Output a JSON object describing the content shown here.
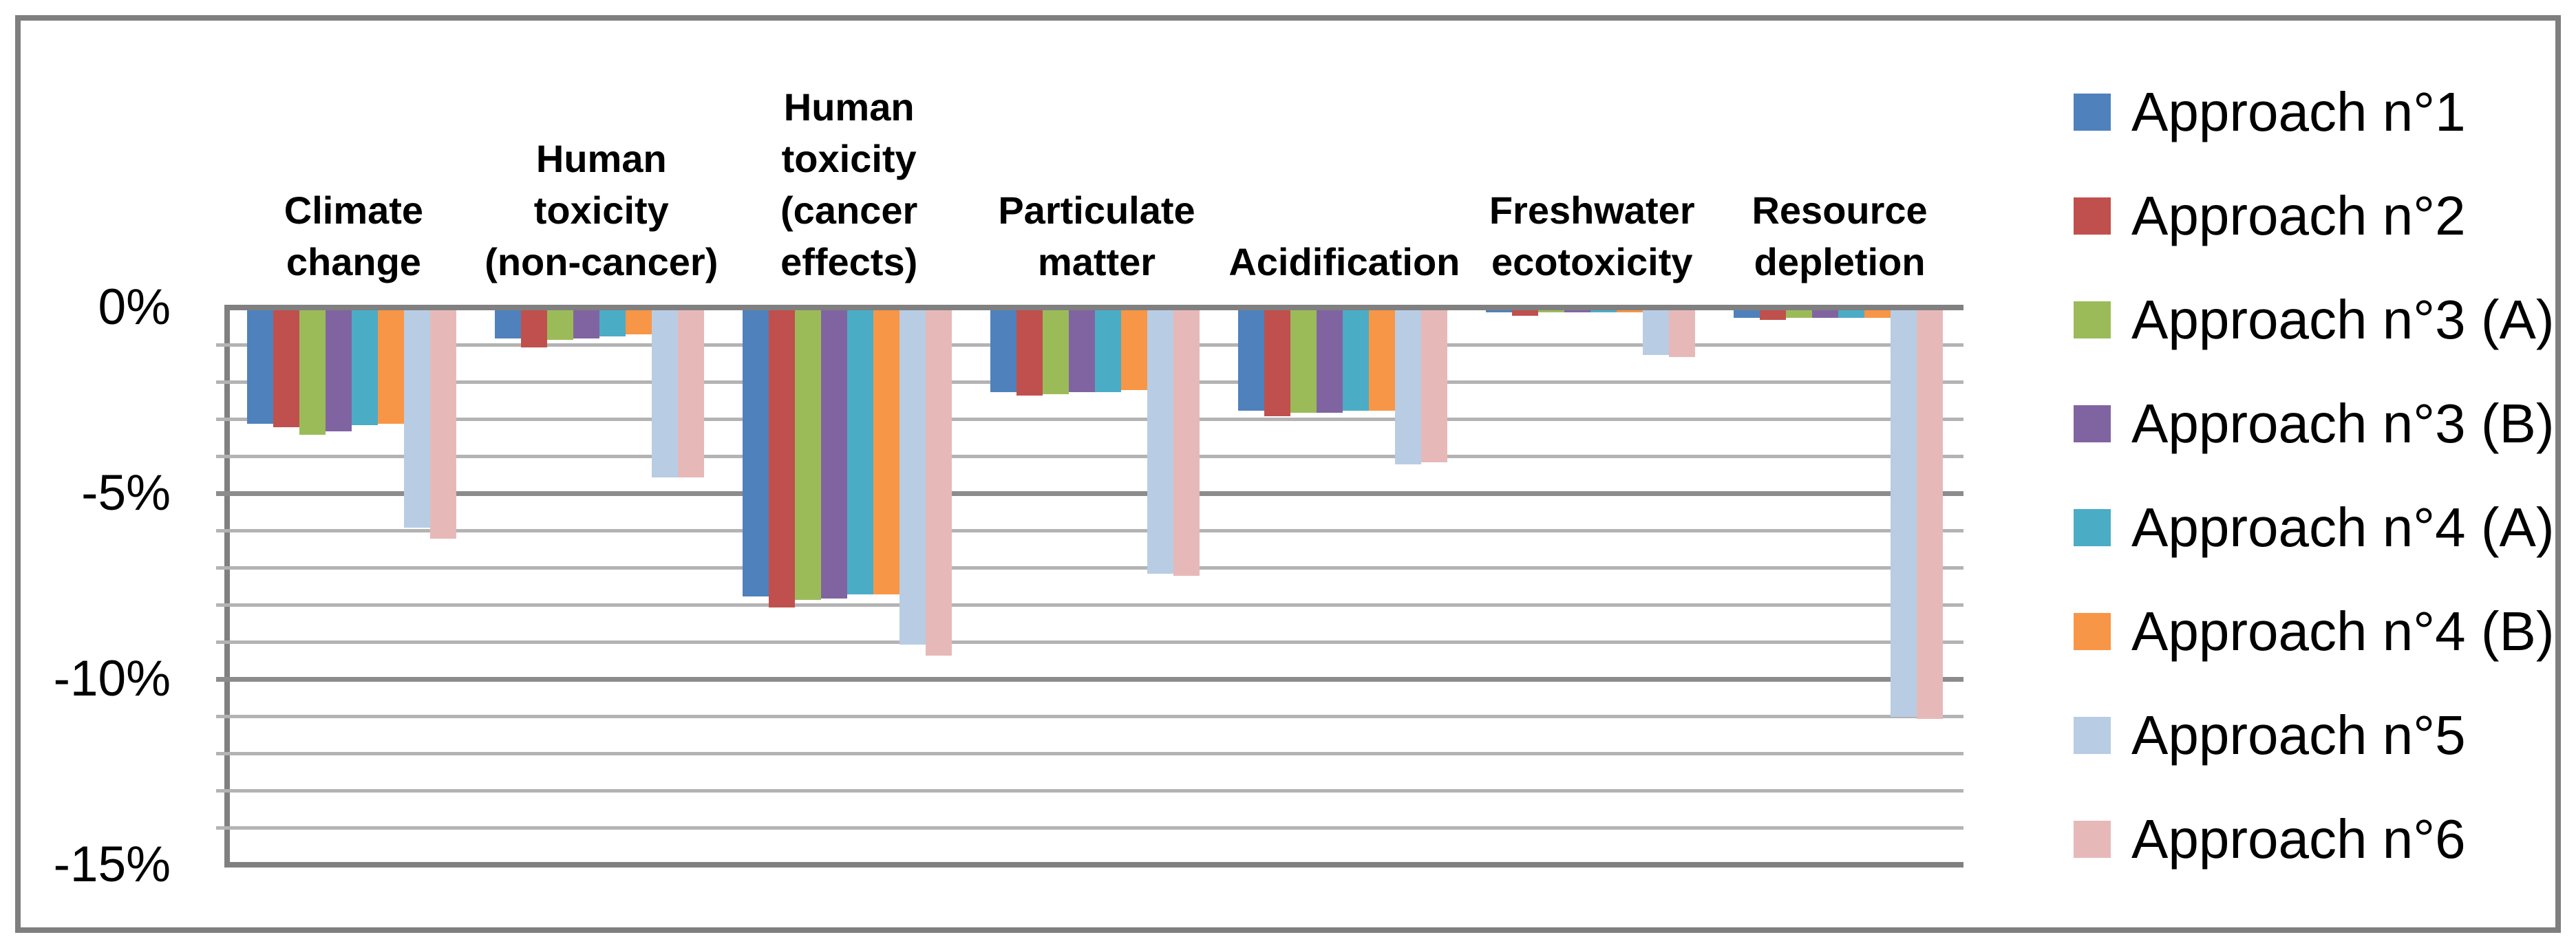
{
  "colors": {
    "frame_border": "#7F7F7F",
    "axis_line": "#808080",
    "grid_minor": "#B3B3B3",
    "grid_major": "#8C8C8C",
    "background": "#FFFFFF"
  },
  "chart_data": {
    "type": "bar",
    "title": "",
    "orientation": "vertical",
    "unit": "%",
    "categories": [
      {
        "label": "Climate change",
        "display": "Climate\nchange"
      },
      {
        "label": "Human toxicity (non-cancer)",
        "display": "Human\ntoxicity\n(non-cancer)"
      },
      {
        "label": "Human toxicity (cancer effects)",
        "display": "Human\ntoxicity\n(cancer\neffects)"
      },
      {
        "label": "Particulate matter",
        "display": "Particulate\nmatter"
      },
      {
        "label": "Acidification",
        "display": "Acidification"
      },
      {
        "label": "Freshwater ecotoxicity",
        "display": "Freshwater\necotoxicity"
      },
      {
        "label": "Resource depletion",
        "display": "Resource\ndepletion"
      }
    ],
    "series": [
      {
        "name": "Approach n°1",
        "color": "#4F81BD",
        "values": [
          -3.05,
          -0.75,
          -7.7,
          -2.2,
          -2.7,
          -0.05,
          -0.2
        ]
      },
      {
        "name": "Approach n°2",
        "color": "#C0504D",
        "values": [
          -3.15,
          -1.0,
          -8.0,
          -2.3,
          -2.85,
          -0.15,
          -0.25
        ]
      },
      {
        "name": "Approach n°3 (A)",
        "color": "#9BBB59",
        "values": [
          -3.35,
          -0.8,
          -7.8,
          -2.25,
          -2.75,
          -0.05,
          -0.2
        ]
      },
      {
        "name": "Approach n°3 (B)",
        "color": "#8064A2",
        "values": [
          -3.25,
          -0.75,
          -7.75,
          -2.2,
          -2.75,
          -0.05,
          -0.2
        ]
      },
      {
        "name": "Approach n°4 (A)",
        "color": "#4BACC6",
        "values": [
          -3.1,
          -0.7,
          -7.65,
          -2.2,
          -2.7,
          -0.05,
          -0.2
        ]
      },
      {
        "name": "Approach n°4 (B)",
        "color": "#F79646",
        "values": [
          -3.05,
          -0.65,
          -7.65,
          -2.15,
          -2.7,
          -0.05,
          -0.2
        ]
      },
      {
        "name": "Approach n°5",
        "color": "#B8CCE4",
        "values": [
          -5.85,
          -4.5,
          -9.0,
          -7.1,
          -4.15,
          -1.2,
          -10.95
        ]
      },
      {
        "name": "Approach n°6",
        "color": "#E6B9B8",
        "values": [
          -6.15,
          -4.5,
          -9.3,
          -7.15,
          -4.1,
          -1.25,
          -11.0
        ]
      }
    ],
    "y_axis": {
      "min": -15,
      "max": 0,
      "minor_step": 1,
      "major_step": 5,
      "tick_labels": [
        "0%",
        "-5%",
        "-10%",
        "-15%"
      ],
      "tick_values": [
        0,
        -5,
        -10,
        -15
      ]
    },
    "grid": {
      "minor": true,
      "major": true
    },
    "legend_position": "right"
  }
}
